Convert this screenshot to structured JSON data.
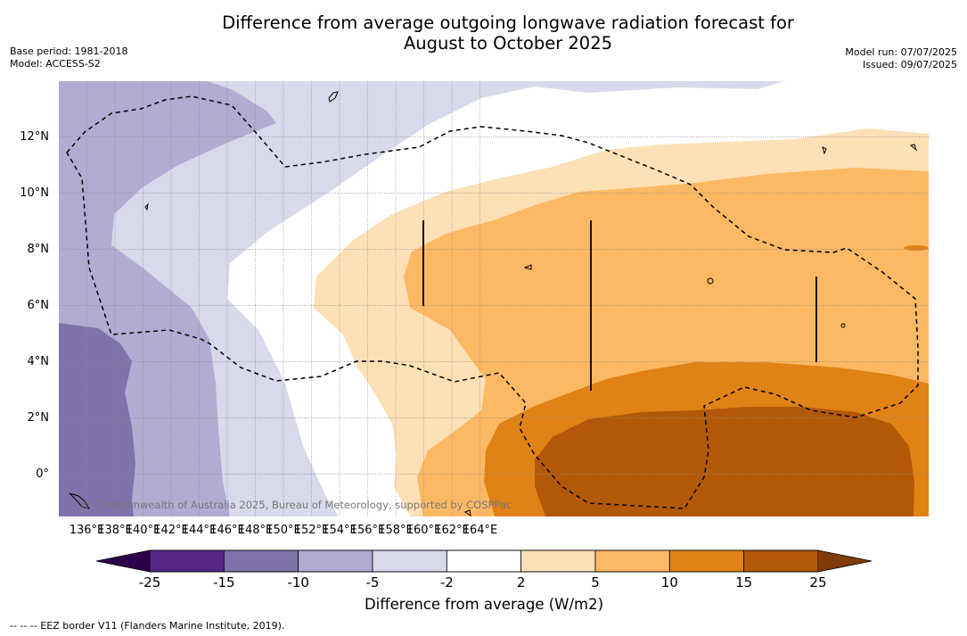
{
  "title_line1": "Difference from average outgoing longwave radiation forecast for",
  "title_line2": "August to October 2025",
  "meta_left": {
    "base_period": "Base period: 1981-2018",
    "model": "Model: ACCESS-S2"
  },
  "meta_right": {
    "model_run": "Model run: 07/07/2025",
    "issued": "Issued: 09/07/2025"
  },
  "copyright": "© Commonwealth of Australia 2025, Bureau of Meteorology, supported by COSPPac",
  "lat_labels": [
    "12°N",
    "10°N",
    "8°N",
    "6°N",
    "4°N",
    "2°N",
    "0°"
  ],
  "lon_labels": [
    "136°E",
    "138°E",
    "140°E",
    "142°E",
    "144°E",
    "146°E",
    "148°E",
    "150°E",
    "152°E",
    "154°E",
    "156°E",
    "158°E",
    "160°E",
    "162°E",
    "164°E"
  ],
  "colorbar": {
    "labels": [
      "-25",
      "-15",
      "-10",
      "-5",
      "-2",
      "2",
      "5",
      "10",
      "15",
      "25"
    ],
    "colors": [
      "#2d004b",
      "#542788",
      "#8073ac",
      "#b2abd2",
      "#d8daeb",
      "#ffffff",
      "#fee0b6",
      "#fdb863",
      "#e08214",
      "#b35806",
      "#7f3b08"
    ],
    "title": "Difference from average (W/m2)"
  },
  "footnote": "--  --  -- EEZ border V11 (Flanders Marine Institute, 2019)."
}
